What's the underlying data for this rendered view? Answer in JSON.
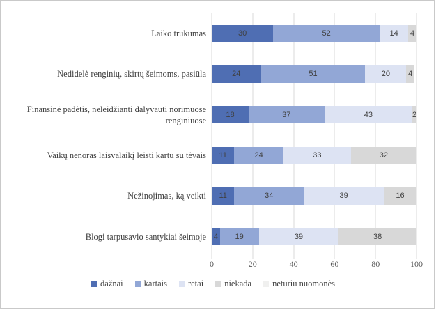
{
  "chart_data": {
    "type": "bar",
    "orientation": "horizontal_stacked",
    "title": "",
    "xlabel": "",
    "ylabel": "",
    "xlim": [
      0,
      100
    ],
    "xticks": [
      0,
      20,
      40,
      60,
      80,
      100
    ],
    "grid": true,
    "legend_position": "bottom",
    "categories": [
      "Laiko trūkumas",
      "Nedidelė renginių, skirtų šeimoms, pasiūla",
      "Finansinė padėtis, neleidžianti dalyvauti norimuose renginiuose",
      "Vaikų nenoras laisvalaikį leisti kartu su tėvais",
      "Nežinojimas, ką veikti",
      "Blogi tarpusavio santykiai šeimoje"
    ],
    "series": [
      {
        "name": "dažnai",
        "color": "#4f6eb3",
        "values": [
          30,
          24,
          18,
          11,
          11,
          4
        ]
      },
      {
        "name": "kartais",
        "color": "#92a7d6",
        "values": [
          52,
          51,
          37,
          24,
          34,
          19
        ]
      },
      {
        "name": "retai",
        "color": "#dde3f3",
        "values": [
          14,
          20,
          43,
          33,
          39,
          39
        ]
      },
      {
        "name": "niekada",
        "color": "#d8d8d8",
        "values": [
          4,
          4,
          2,
          32,
          16,
          38
        ]
      },
      {
        "name": "neturiu nuomonės",
        "color": "#f0f0ef",
        "values": [
          0,
          0,
          0,
          0,
          0,
          0
        ]
      }
    ]
  },
  "frame": {
    "border_color": "#c9c9c9",
    "gridline_color": "#d9d9d9",
    "label_color": "#404040",
    "tick_color": "#595959"
  }
}
